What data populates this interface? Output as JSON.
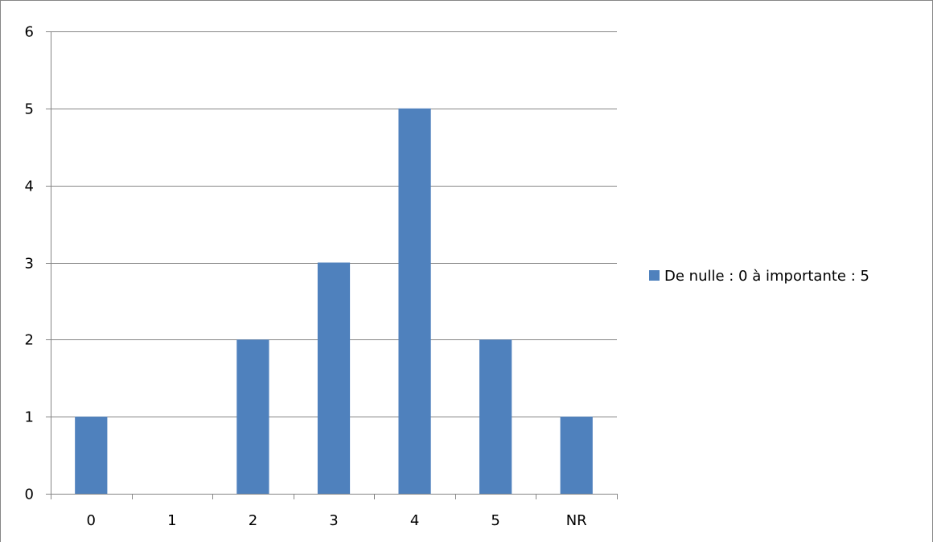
{
  "chart_data": {
    "type": "bar",
    "categories": [
      "0",
      "1",
      "2",
      "3",
      "4",
      "5",
      "NR"
    ],
    "series": [
      {
        "name": "De nulle : 0 à importante : 5",
        "values": [
          1,
          0,
          2,
          3,
          5,
          2,
          1
        ],
        "color": "#4F81BD"
      }
    ],
    "ylim": [
      0,
      6
    ],
    "yticks": [
      0,
      1,
      2,
      3,
      4,
      5,
      6
    ],
    "grid": true,
    "legend_position": "right",
    "title": "",
    "xlabel": "",
    "ylabel": ""
  },
  "colors": {
    "gridline": "#868686",
    "axis": "#868686",
    "frame": "#868686"
  }
}
